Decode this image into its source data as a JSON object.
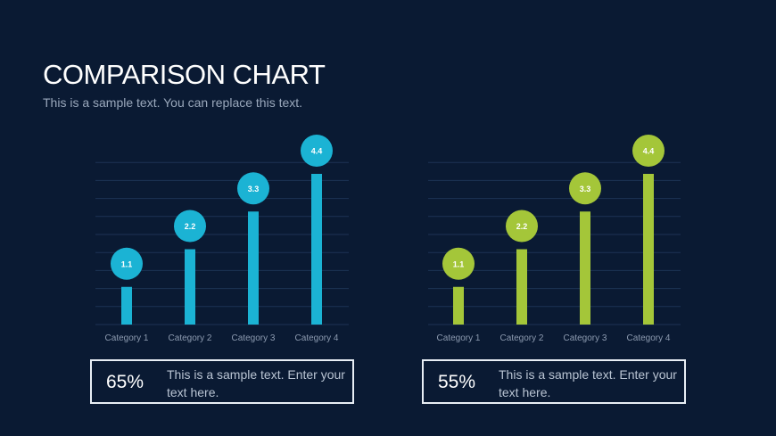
{
  "header": {
    "title": "COMPARISON CHART",
    "subtitle": "This is a sample text. You can replace this text."
  },
  "chart_data": [
    {
      "type": "bar",
      "categories": [
        "Category 1",
        "Category 2",
        "Category 3",
        "Category 4"
      ],
      "values": [
        1.1,
        2.2,
        3.3,
        4.4
      ],
      "data_labels": [
        "1.1",
        "2.2",
        "3.3",
        "4.4"
      ],
      "color": "#1bb3d4",
      "ylim": [
        0,
        5
      ],
      "grid": true,
      "legend": "none"
    },
    {
      "type": "bar",
      "categories": [
        "Category 1",
        "Category 2",
        "Category 3",
        "Category 4"
      ],
      "values": [
        1.1,
        2.2,
        3.3,
        4.4
      ],
      "data_labels": [
        "1.1",
        "2.2",
        "3.3",
        "4.4"
      ],
      "color": "#a4c639",
      "ylim": [
        0,
        5
      ],
      "grid": true,
      "legend": "none"
    }
  ],
  "summary": [
    {
      "percent": "65%",
      "text": "This is a sample text. Enter your text here."
    },
    {
      "percent": "55%",
      "text": "This is a sample text. Enter your text here."
    }
  ],
  "colors": {
    "background": "#0a1a33",
    "accent_blue": "#1bb3d4",
    "accent_green": "#a4c639"
  }
}
